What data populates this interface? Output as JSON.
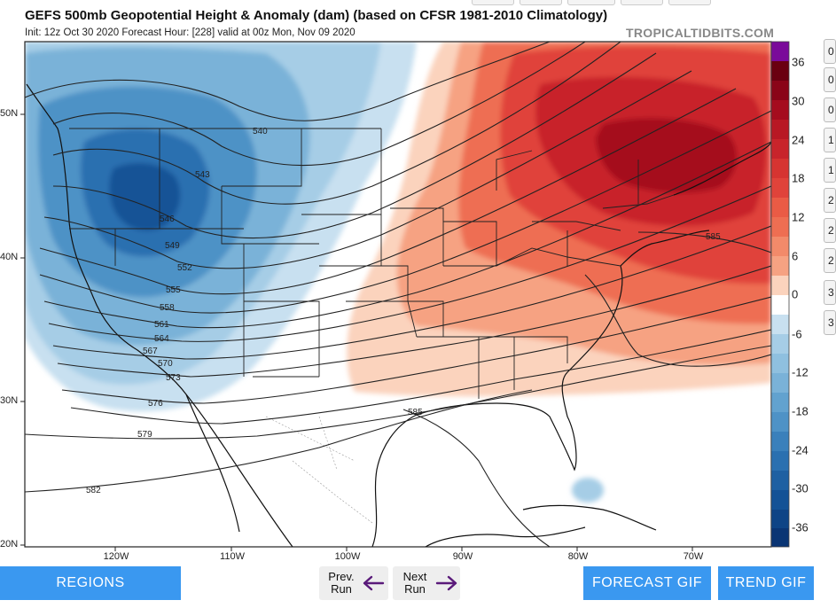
{
  "header": {
    "title": "GEFS 500mb Geopotential Height & Anomaly (dam) (based on CFSR 1981-2010 Climatology)",
    "subtitle": "Init: 12z Oct 30 2020   Forecast Hour: [228]   valid at 00z Mon, Nov 09 2020",
    "brand": "TROPICALTIDBITS.COM"
  },
  "map": {
    "lat_labels": [
      "50N",
      "40N",
      "30N",
      "20N"
    ],
    "lon_labels": [
      "120W",
      "110W",
      "100W",
      "90W",
      "80W",
      "70W"
    ],
    "contour_labels": [
      "540",
      "543",
      "546",
      "549",
      "552",
      "555",
      "558",
      "561",
      "564",
      "567",
      "570",
      "573",
      "576",
      "579",
      "582",
      "585",
      "585"
    ]
  },
  "colorbar": {
    "labels": [
      "36",
      "30",
      "24",
      "18",
      "12",
      "6",
      "0",
      "-6",
      "-12",
      "-18",
      "-24",
      "-30",
      "-36"
    ],
    "colors": {
      "purple": "#7a0a9a",
      "red_36": "#6a0010",
      "red_30": "#a50c1e",
      "red_24": "#c8242b",
      "red_18": "#e0433a",
      "red_12": "#ee6e52",
      "red_6": "#f6a282",
      "red_3": "#fbd3bd",
      "blue_3": "#c8e0f0",
      "blue_6": "#a6cde6",
      "blue_12": "#7ab2d8",
      "blue_18": "#4e92c6",
      "blue_24": "#2a70b0",
      "blue_30": "#145296",
      "blue_36": "#0a3574"
    }
  },
  "side_tabs": [
    "0",
    "0",
    "0",
    "1",
    "1",
    "2",
    "2",
    "2",
    "3",
    "3"
  ],
  "footer": {
    "regions_label": "REGIONS",
    "prev_label_1": "Prev.",
    "prev_label_2": "Run",
    "next_label_1": "Next",
    "next_label_2": "Run",
    "forecast_gif_label": "FORECAST GIF",
    "trend_gif_label": "TREND GIF"
  }
}
